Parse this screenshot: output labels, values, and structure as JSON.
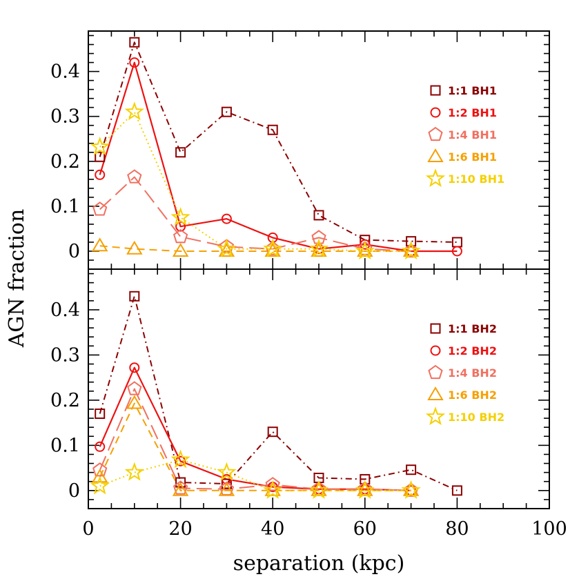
{
  "chart_data": [
    {
      "type": "line",
      "panel": "top",
      "xlabel": "separation (kpc)",
      "ylabel": "AGN fraction",
      "xlim": [
        0,
        100
      ],
      "ylim": [
        -0.04,
        0.49
      ],
      "xticks": [
        "0",
        "20",
        "40",
        "60",
        "80",
        "100"
      ],
      "yticks": [
        "0",
        "0.1",
        "0.2",
        "0.3",
        "0.4"
      ],
      "legend_position": "right",
      "series": [
        {
          "name": "1:1 BH1",
          "color": "#8b0000",
          "marker": "square",
          "dash": "dash-dot",
          "x": [
            2.5,
            10,
            20,
            30,
            40,
            50,
            60,
            70,
            80
          ],
          "y": [
            0.21,
            0.465,
            0.22,
            0.31,
            0.27,
            0.08,
            0.025,
            0.022,
            0.02
          ]
        },
        {
          "name": "1:2 BH1",
          "color": "#ee1111",
          "marker": "circle",
          "dash": "solid",
          "x": [
            2.5,
            10,
            20,
            30,
            40,
            50,
            60,
            70,
            80
          ],
          "y": [
            0.17,
            0.42,
            0.055,
            0.072,
            0.03,
            0.005,
            0.015,
            0.0,
            0.0
          ]
        },
        {
          "name": "1:4 BH1",
          "color": "#f07060",
          "marker": "pentagon",
          "dash": "long-dash",
          "x": [
            2.5,
            10,
            20,
            30,
            40,
            50,
            60,
            70
          ],
          "y": [
            0.093,
            0.165,
            0.032,
            0.01,
            0.005,
            0.03,
            0.005,
            0.0
          ]
        },
        {
          "name": "1:6 BH1",
          "color": "#f5a000",
          "marker": "triangle",
          "dash": "dash",
          "x": [
            2.5,
            10,
            20,
            30,
            40,
            50,
            60,
            70
          ],
          "y": [
            0.012,
            0.005,
            0.0,
            0.0,
            0.0,
            0.0,
            0.0,
            0.0
          ]
        },
        {
          "name": "1:10 BH1",
          "color": "#f5d000",
          "marker": "star",
          "dash": "dot",
          "x": [
            2.5,
            10,
            20,
            30,
            40,
            50,
            60,
            70
          ],
          "y": [
            0.232,
            0.31,
            0.075,
            0.005,
            0.005,
            0.005,
            0.0,
            0.0
          ]
        }
      ]
    },
    {
      "type": "line",
      "panel": "bottom",
      "xlabel": "separation (kpc)",
      "ylabel": "AGN fraction",
      "xlim": [
        0,
        100
      ],
      "ylim": [
        -0.04,
        0.49
      ],
      "xticks": [
        "0",
        "20",
        "40",
        "60",
        "80",
        "100"
      ],
      "yticks": [
        "0",
        "0.1",
        "0.2",
        "0.3",
        "0.4"
      ],
      "legend_position": "right",
      "series": [
        {
          "name": "1:1 BH2",
          "color": "#8b0000",
          "marker": "square",
          "dash": "dash-dot",
          "x": [
            2.5,
            10,
            20,
            30,
            40,
            50,
            60,
            70,
            80
          ],
          "y": [
            0.17,
            0.43,
            0.018,
            0.015,
            0.13,
            0.028,
            0.025,
            0.046,
            0.0
          ]
        },
        {
          "name": "1:2 BH2",
          "color": "#ee1111",
          "marker": "circle",
          "dash": "solid",
          "x": [
            2.5,
            10,
            20,
            30,
            40,
            50,
            60,
            70
          ],
          "y": [
            0.097,
            0.272,
            0.065,
            0.025,
            0.008,
            0.003,
            0.003,
            0.0
          ]
        },
        {
          "name": "1:4 BH2",
          "color": "#f07060",
          "marker": "pentagon",
          "dash": "long-dash",
          "x": [
            2.5,
            10,
            20,
            30,
            40,
            50,
            60,
            70
          ],
          "y": [
            0.045,
            0.225,
            0.005,
            0.003,
            0.013,
            0.003,
            0.003,
            0.0
          ]
        },
        {
          "name": "1:6 BH2",
          "color": "#f5a000",
          "marker": "triangle",
          "dash": "dash",
          "x": [
            2.5,
            10,
            20,
            30,
            40,
            50,
            60,
            70
          ],
          "y": [
            0.03,
            0.193,
            0.0,
            0.0,
            0.0,
            0.0,
            0.0,
            0.0
          ]
        },
        {
          "name": "1:10 BH2",
          "color": "#f5d000",
          "marker": "star",
          "dash": "dot",
          "x": [
            2.5,
            10,
            20,
            30,
            40,
            50,
            60,
            70
          ],
          "y": [
            0.01,
            0.04,
            0.068,
            0.04,
            0.0,
            0.0,
            0.0,
            0.0
          ]
        }
      ]
    }
  ]
}
